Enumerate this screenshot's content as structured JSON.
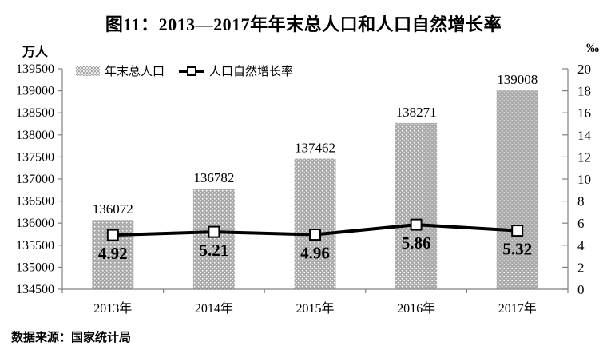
{
  "title": "图11：2013—2017年年末总人口和人口自然增长率",
  "legend": {
    "bar_label": "年末总人口",
    "line_label": "人口自然增长率"
  },
  "axes": {
    "left_unit": "万人",
    "right_unit": "‰"
  },
  "footer": {
    "source": "数据来源：国家统计局"
  },
  "colors": {
    "bar_fill": "#a9a9a9",
    "bar_dot": "#ffffff",
    "line": "#000000",
    "marker_fill": "#ffffff",
    "marker_stroke": "#000000",
    "axis": "#808080",
    "text": "#000000"
  },
  "chart_data": {
    "type": "bar",
    "subtype": "bar-line-combo",
    "title": "图11：2013—2017年年末总人口和人口自然增长率",
    "categories": [
      "2013年",
      "2014年",
      "2015年",
      "2016年",
      "2017年"
    ],
    "series": [
      {
        "name": "年末总人口",
        "type": "bar",
        "axis": "left",
        "values": [
          136072,
          136782,
          137462,
          138271,
          139008
        ]
      },
      {
        "name": "人口自然增长率",
        "type": "line",
        "axis": "right",
        "values": [
          4.92,
          5.21,
          4.96,
          5.86,
          5.32
        ]
      }
    ],
    "left_axis": {
      "unit": "万人",
      "min": 134500,
      "max": 139500,
      "step": 500,
      "ticks": [
        134500,
        135000,
        135500,
        136000,
        136500,
        137000,
        137500,
        138000,
        138500,
        139000,
        139500
      ]
    },
    "right_axis": {
      "unit": "‰",
      "min": 0,
      "max": 20,
      "step": 2,
      "ticks": [
        0,
        2,
        4,
        6,
        8,
        10,
        12,
        14,
        16,
        18,
        20
      ]
    },
    "legend_position": "top-left",
    "grid": false,
    "data_labels": true
  }
}
